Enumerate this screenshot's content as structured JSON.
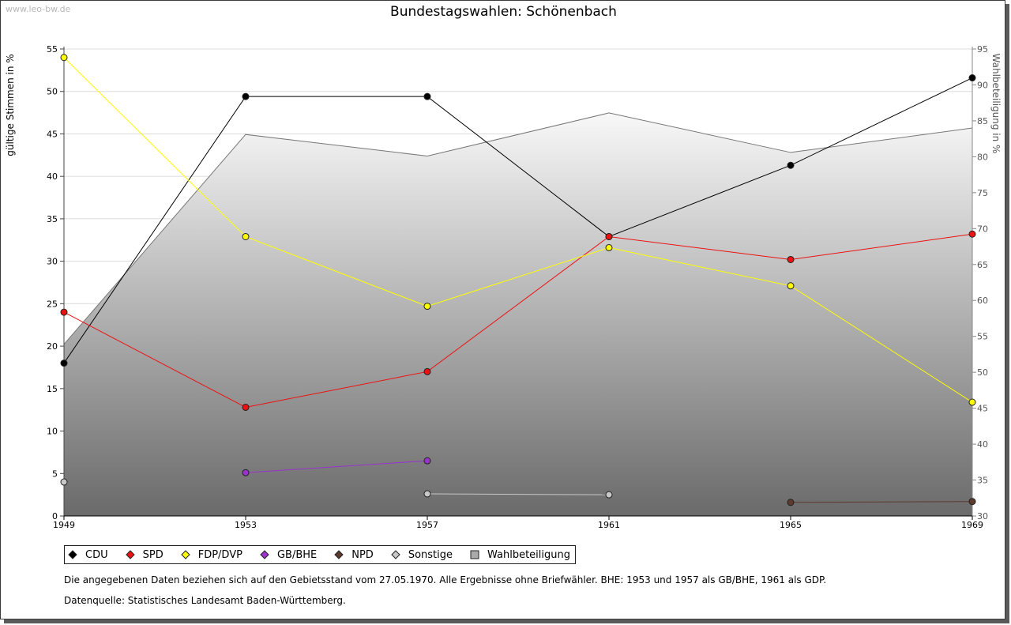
{
  "page": {
    "watermark": "www.leo-bw.de",
    "note": "Die angegebenen Daten beziehen sich auf den Gebietsstand vom 27.05.1970. Alle Ergebnisse ohne Briefwähler. BHE: 1953 und 1957 als GB/BHE, 1961 als GDP.",
    "source": "Datenquelle: Statistisches Landesamt Baden-Württemberg."
  },
  "chart_data": {
    "type": "line",
    "title": "Bundestagswahlen: Schönenbach",
    "ylabel": "gültige Stimmen in %",
    "ylabel_right": "Wahlbeteiligung in %",
    "categories": [
      "1949",
      "1953",
      "1957",
      "1961",
      "1965",
      "1969"
    ],
    "ylim": [
      0,
      55
    ],
    "yticks": [
      0,
      5,
      10,
      15,
      20,
      25,
      30,
      35,
      40,
      45,
      50,
      55
    ],
    "ylim_right": [
      30,
      95
    ],
    "yticks_right": [
      30,
      35,
      40,
      45,
      50,
      55,
      60,
      65,
      70,
      75,
      80,
      85,
      90,
      95
    ],
    "grid": true,
    "legend_position": "bottom-left",
    "area": {
      "name": "Wahlbeteiligung",
      "axis": "right",
      "values": [
        53.9,
        83.1,
        80.1,
        86.1,
        80.6,
        84.0
      ],
      "color": "#777777",
      "gradient_top": "#f8f8f8",
      "gradient_bottom": "#6a6a6a"
    },
    "series": [
      {
        "name": "CDU",
        "color": "#000000",
        "values": [
          18.0,
          49.4,
          49.4,
          32.9,
          41.3,
          51.6
        ]
      },
      {
        "name": "SPD",
        "color": "#ee1111",
        "values": [
          24.0,
          12.8,
          17.0,
          32.9,
          30.2,
          33.2
        ]
      },
      {
        "name": "FDP/DVP",
        "color": "#ffff00",
        "values": [
          54.0,
          32.9,
          24.7,
          31.6,
          27.1,
          13.4
        ]
      },
      {
        "name": "GB/BHE",
        "color": "#9933cc",
        "values": [
          null,
          5.1,
          6.5,
          null,
          null,
          null
        ]
      },
      {
        "name": "NPD",
        "color": "#5c3a2e",
        "values": [
          null,
          null,
          null,
          null,
          1.6,
          1.7
        ]
      },
      {
        "name": "Sonstige",
        "color": "#c8c8c8",
        "values": [
          4.0,
          null,
          2.6,
          2.5,
          null,
          null
        ]
      }
    ]
  }
}
